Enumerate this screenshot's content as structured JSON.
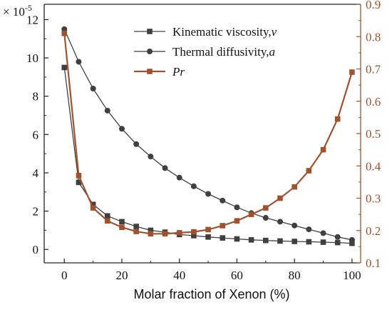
{
  "chart_data": {
    "type": "line",
    "title": "",
    "xlabel": "Molar fraction of Xenon (%)",
    "xlim": [
      -7,
      103
    ],
    "xticks": [
      0,
      20,
      40,
      60,
      80,
      100
    ],
    "left_axis": {
      "scale_label": "× 10",
      "scale_exponent": "-5",
      "ylim": [
        -0.7,
        12.8
      ],
      "ticks": [
        0,
        2,
        4,
        6,
        8,
        10,
        12
      ]
    },
    "right_axis": {
      "ylim": [
        0.1,
        0.9
      ],
      "ticks": [
        "0.1",
        "0.2",
        "0.3",
        "0.4",
        "0.5",
        "0.6",
        "0.7",
        "0.8",
        "0.9"
      ],
      "color": "#a0522d"
    },
    "legend_position": "top-right",
    "series": [
      {
        "name_text": "Kinematic viscosity,",
        "name_symbol": "v",
        "axis": "left",
        "marker": "square",
        "color": "#404040",
        "x": [
          0,
          5,
          10,
          15,
          20,
          25,
          30,
          35,
          40,
          45,
          50,
          55,
          60,
          65,
          70,
          75,
          80,
          85,
          90,
          95,
          100
        ],
        "y": [
          9.5,
          3.5,
          2.35,
          1.75,
          1.45,
          1.2,
          1.0,
          0.9,
          0.78,
          0.72,
          0.65,
          0.6,
          0.55,
          0.5,
          0.47,
          0.44,
          0.42,
          0.4,
          0.38,
          0.36,
          0.32
        ]
      },
      {
        "name_text": "Thermal diffusivity,",
        "name_symbol": "a",
        "axis": "left",
        "marker": "circle",
        "color": "#404040",
        "x": [
          0,
          5,
          10,
          15,
          20,
          25,
          30,
          35,
          40,
          45,
          50,
          55,
          60,
          65,
          70,
          75,
          80,
          85,
          90,
          95,
          100
        ],
        "y": [
          11.5,
          9.8,
          8.4,
          7.25,
          6.3,
          5.5,
          4.85,
          4.25,
          3.75,
          3.3,
          2.9,
          2.55,
          2.2,
          1.9,
          1.65,
          1.45,
          1.25,
          1.05,
          0.85,
          0.65,
          0.5
        ]
      },
      {
        "name_text": "",
        "name_symbol": "Pr",
        "axis": "right",
        "marker": "square",
        "color": "#a0522d",
        "x": [
          0,
          5,
          10,
          15,
          20,
          25,
          30,
          35,
          40,
          45,
          50,
          55,
          60,
          65,
          70,
          75,
          80,
          85,
          90,
          95,
          100
        ],
        "y": [
          0.81,
          0.37,
          0.27,
          0.23,
          0.21,
          0.197,
          0.19,
          0.19,
          0.193,
          0.196,
          0.203,
          0.215,
          0.23,
          0.25,
          0.27,
          0.3,
          0.335,
          0.385,
          0.45,
          0.545,
          0.69
        ]
      }
    ]
  }
}
